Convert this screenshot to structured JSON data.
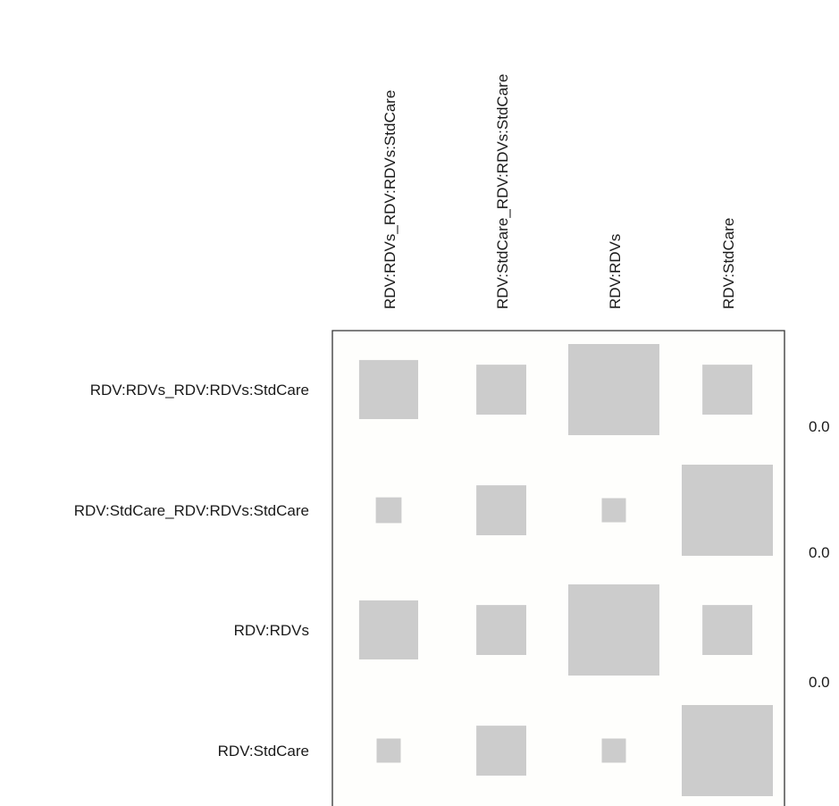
{
  "chart_data": {
    "type": "heatmap",
    "title": "",
    "xlabel": "",
    "ylabel": "",
    "columns": [
      "RDV:RDVs_RDV:RDVs:StdCare",
      "RDV:StdCare_RDV:RDVs:StdCare",
      "RDV:RDVs",
      "RDV:StdCare"
    ],
    "rows": [
      "RDV:RDVs_RDV:RDVs:StdCare",
      "RDV:StdCare_RDV:RDVs:StdCare",
      "RDV:RDVs",
      "RDV:StdCare"
    ],
    "values": [
      [
        0.42,
        0.3,
        1.0,
        0.3
      ],
      [
        0.08,
        0.3,
        0.07,
        1.0
      ],
      [
        0.42,
        0.3,
        1.0,
        0.3
      ],
      [
        0.07,
        0.3,
        0.07,
        1.0
      ]
    ],
    "legend_ticks": [
      "0.0",
      "0.0",
      "0.0"
    ],
    "colors": {
      "square": "#cccccc",
      "frame": "#333333",
      "background": "#fefefc"
    }
  }
}
